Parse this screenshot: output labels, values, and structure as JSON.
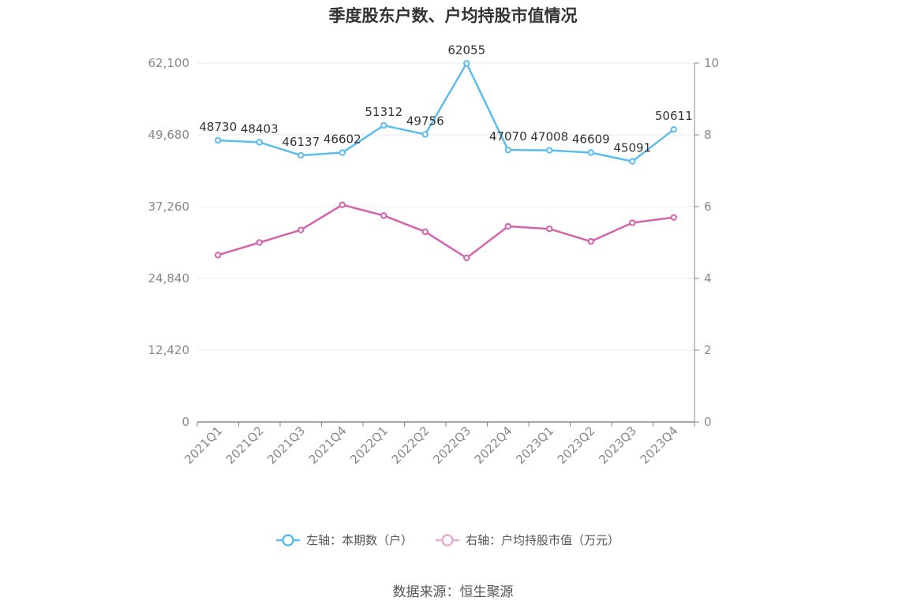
{
  "title": "季度股东户数、户均持股市值情况",
  "source": "数据来源：恒生聚源",
  "chart_data": {
    "type": "line",
    "categories": [
      "2021Q1",
      "2021Q2",
      "2021Q3",
      "2021Q4",
      "2022Q1",
      "2022Q2",
      "2022Q3",
      "2022Q4",
      "2023Q1",
      "2023Q2",
      "2023Q3",
      "2023Q4"
    ],
    "left_axis": {
      "ylim": [
        0,
        62100
      ],
      "ticks": [
        "0",
        "12,420",
        "24,840",
        "37,260",
        "49,680",
        "62,100"
      ]
    },
    "right_axis": {
      "ylim": [
        0,
        10
      ],
      "ticks": [
        "0",
        "2",
        "4",
        "6",
        "8",
        "10"
      ]
    },
    "grid": true,
    "legend_position": "bottom",
    "series": [
      {
        "name": "左轴：本期数（户）",
        "axis": "left",
        "color": "#5bbdee",
        "values": [
          48730,
          48403,
          46137,
          46602,
          51312,
          49756,
          62055,
          47070,
          47008,
          46609,
          45091,
          50611
        ],
        "labels": [
          "48730",
          "48403",
          "46137",
          "46602",
          "51312",
          "49756",
          "62055",
          "47070",
          "47008",
          "46609",
          "45091",
          "50611"
        ]
      },
      {
        "name": "右轴：户均持股市值（万元）",
        "axis": "right",
        "color": "#d463ad",
        "values": [
          4.65,
          5.0,
          5.35,
          6.05,
          5.75,
          5.3,
          4.57,
          5.45,
          5.38,
          5.03,
          5.55,
          5.7
        ]
      }
    ]
  }
}
